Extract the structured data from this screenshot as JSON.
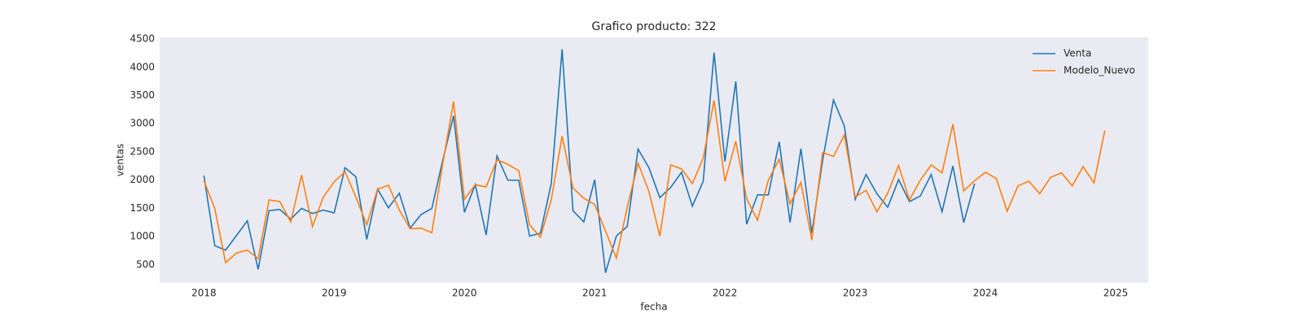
{
  "chart_data": {
    "type": "line",
    "title": "Grafico producto: 322",
    "x_label": "fecha",
    "y_label": "ventas",
    "x": [
      "2018-01",
      "2018-02",
      "2018-03",
      "2018-04",
      "2018-05",
      "2018-06",
      "2018-07",
      "2018-08",
      "2018-09",
      "2018-10",
      "2018-11",
      "2018-12",
      "2019-01",
      "2019-02",
      "2019-03",
      "2019-04",
      "2019-05",
      "2019-06",
      "2019-07",
      "2019-08",
      "2019-09",
      "2019-10",
      "2019-11",
      "2019-12",
      "2020-01",
      "2020-02",
      "2020-03",
      "2020-04",
      "2020-05",
      "2020-06",
      "2020-07",
      "2020-08",
      "2020-09",
      "2020-10",
      "2020-11",
      "2020-12",
      "2021-01",
      "2021-02",
      "2021-03",
      "2021-04",
      "2021-05",
      "2021-06",
      "2021-07",
      "2021-08",
      "2021-09",
      "2021-10",
      "2021-11",
      "2021-12",
      "2022-01",
      "2022-02",
      "2022-03",
      "2022-04",
      "2022-05",
      "2022-06",
      "2022-07",
      "2022-08",
      "2022-09",
      "2022-10",
      "2022-11",
      "2022-12",
      "2023-01",
      "2023-02",
      "2023-03",
      "2023-04",
      "2023-05",
      "2023-06",
      "2023-07",
      "2023-08",
      "2023-09",
      "2023-10",
      "2023-11",
      "2023-12",
      "2024-01",
      "2024-02",
      "2024-03",
      "2024-04",
      "2024-05",
      "2024-06",
      "2024-07",
      "2024-08",
      "2024-09",
      "2024-10",
      "2024-11",
      "2024-12"
    ],
    "series": [
      {
        "name": "Venta",
        "color": "#1f77b4",
        "values": [
          2080,
          840,
          760,
          1020,
          1280,
          420,
          1460,
          1480,
          1310,
          1500,
          1410,
          1470,
          1420,
          2220,
          2060,
          950,
          1840,
          1510,
          1770,
          1150,
          1390,
          1500,
          2350,
          3140,
          1430,
          1920,
          1030,
          2430,
          2000,
          2000,
          1010,
          1060,
          1940,
          4320,
          1460,
          1260,
          2010,
          360,
          1010,
          1180,
          2550,
          2220,
          1690,
          1870,
          2140,
          1540,
          1980,
          4260,
          2330,
          3750,
          1220,
          1740,
          1740,
          2680,
          1250,
          2560,
          1060,
          2350,
          3420,
          2960,
          1660,
          2100,
          1760,
          1520,
          2010,
          1620,
          1720,
          2100,
          1440,
          2250,
          1250,
          1940,
          null,
          null,
          null,
          null,
          null,
          null,
          null,
          null,
          null,
          null,
          null,
          null
        ]
      },
      {
        "name": "Modelo_Nuevo",
        "color": "#ff7f0e",
        "values": [
          1990,
          1500,
          540,
          710,
          760,
          610,
          1650,
          1620,
          1260,
          2090,
          1180,
          1700,
          1970,
          2150,
          1700,
          1210,
          1840,
          1910,
          1470,
          1140,
          1150,
          1070,
          2290,
          3390,
          1660,
          1920,
          1880,
          2360,
          2280,
          2170,
          1210,
          990,
          1650,
          2780,
          1860,
          1680,
          1570,
          1100,
          620,
          1520,
          2300,
          1800,
          1010,
          2270,
          2200,
          1940,
          2390,
          3410,
          1980,
          2690,
          1670,
          1290,
          2000,
          2370,
          1580,
          1960,
          940,
          2490,
          2420,
          2800,
          1700,
          1820,
          1440,
          1770,
          2260,
          1650,
          2000,
          2270,
          2130,
          2990,
          1810,
          1990,
          2140,
          2030,
          1450,
          1900,
          1980,
          1760,
          2050,
          2130,
          1900,
          2240,
          1950,
          2880
        ]
      }
    ],
    "xlim": [
      2017.66,
      2025.25
    ],
    "xticks": [
      2018,
      2019,
      2020,
      2021,
      2022,
      2023,
      2024,
      2025
    ],
    "ylim": [
      183,
      4529
    ],
    "yticks": [
      500,
      1000,
      1500,
      2000,
      2500,
      3000,
      3500,
      4000,
      4500
    ],
    "legend": "upper right",
    "background": "#eaeaf2",
    "grid": false
  }
}
